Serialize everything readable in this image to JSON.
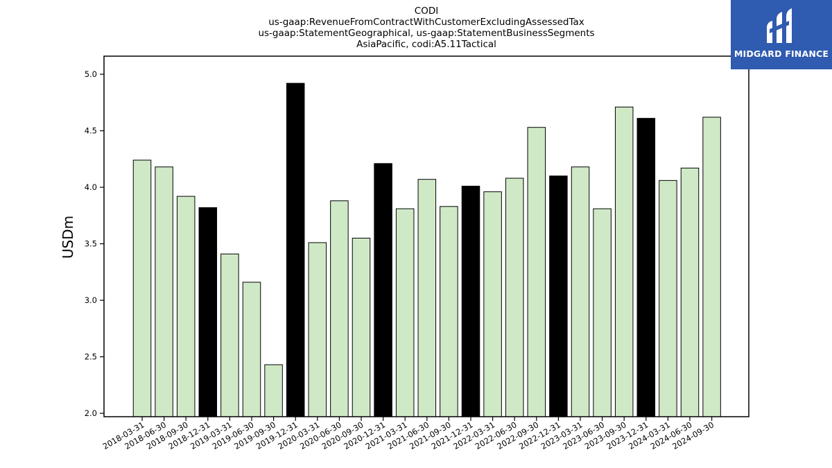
{
  "chart_data": {
    "type": "bar",
    "title_lines": [
      "CODI",
      "us-gaap:RevenueFromContractWithCustomerExcludingAssessedTax",
      "us-gaap:StatementGeographical, us-gaap:StatementBusinessSegments",
      "AsiaPacific, codi:A5.11Tactical"
    ],
    "ylabel": "USDm",
    "xlabel": "",
    "ylim": [
      1.97,
      5.16
    ],
    "yticks": [
      "2.0",
      "2.5",
      "3.0",
      "3.5",
      "4.0",
      "4.5",
      "5.0"
    ],
    "categories": [
      "2018-03-31",
      "2018-06-30",
      "2018-09-30",
      "2018-12-31",
      "2019-03-31",
      "2019-06-30",
      "2019-09-30",
      "2019-12-31",
      "2020-03-31",
      "2020-06-30",
      "2020-09-30",
      "2020-12-31",
      "2021-03-31",
      "2021-06-30",
      "2021-09-30",
      "2021-12-31",
      "2022-03-31",
      "2022-06-30",
      "2022-09-30",
      "2022-12-31",
      "2023-03-31",
      "2023-06-30",
      "2023-09-30",
      "2023-12-31",
      "2024-03-31",
      "2024-06-30",
      "2024-09-30"
    ],
    "values": [
      4.24,
      4.18,
      3.92,
      3.82,
      3.41,
      3.16,
      2.43,
      4.92,
      3.51,
      3.88,
      3.55,
      4.21,
      3.81,
      4.07,
      3.83,
      4.01,
      3.96,
      4.08,
      4.53,
      4.1,
      4.18,
      3.81,
      4.71,
      4.61,
      4.06,
      4.17,
      4.62
    ],
    "highlight": [
      false,
      false,
      false,
      true,
      false,
      false,
      false,
      true,
      false,
      false,
      false,
      true,
      false,
      false,
      false,
      true,
      false,
      false,
      false,
      true,
      false,
      false,
      false,
      true,
      false,
      false,
      false
    ],
    "colors": {
      "bar": "#cfe9c6",
      "highlight": "#000000",
      "edge": "#000000"
    },
    "grid": false,
    "legend": "none"
  },
  "logo": {
    "text": "MIDGARD FINANCE",
    "color": "#2f5bb0"
  }
}
